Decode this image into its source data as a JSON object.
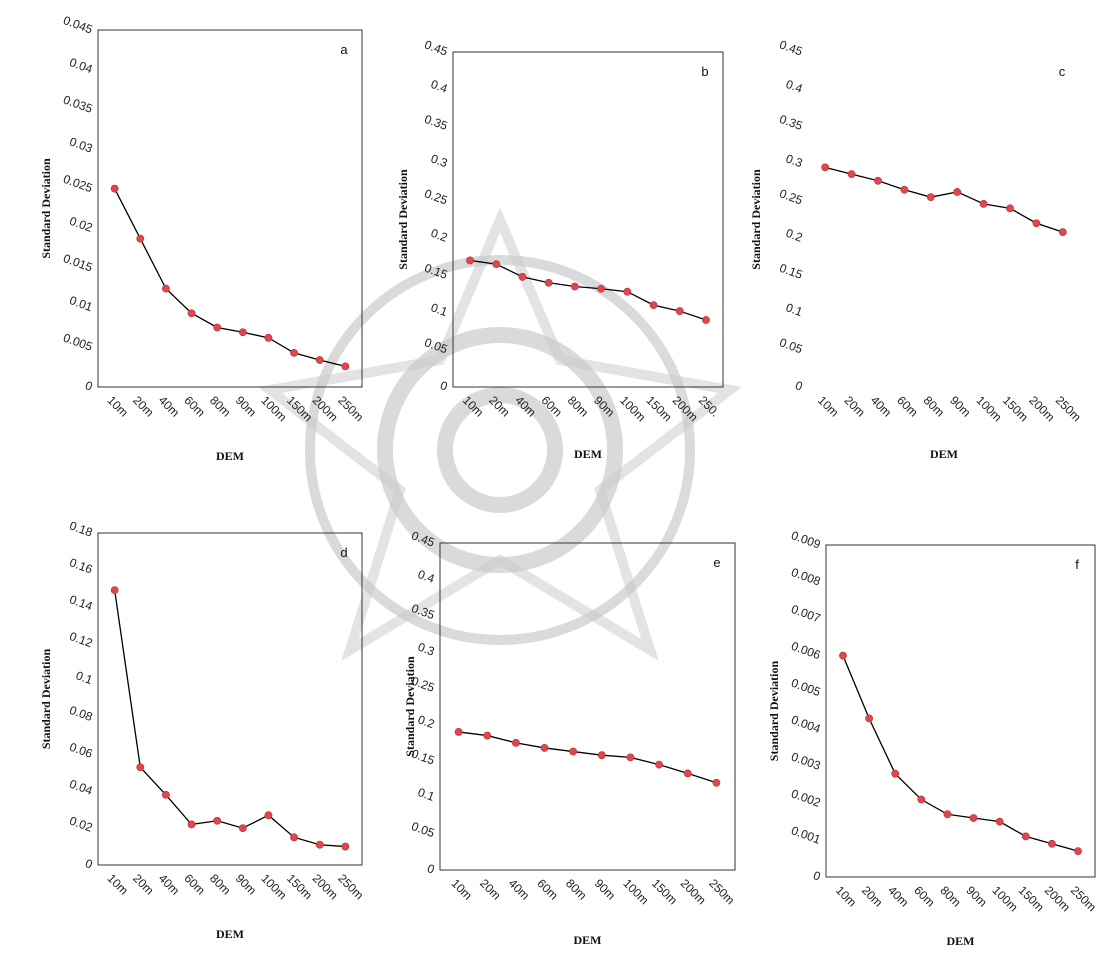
{
  "chart_data": [
    {
      "type": "line",
      "panel_label": "a",
      "xlabel": "DEM",
      "ylabel": "Standard Deviation",
      "categories": [
        "10m",
        "20m",
        "40m",
        "60m",
        "80m",
        "90m",
        "100m",
        "150m",
        "200m",
        "250m"
      ],
      "ylim": [
        0,
        0.045
      ],
      "yticks": [
        "0",
        "0.005",
        "0.01",
        "0.015",
        "0.02",
        "0.025",
        "0.03",
        "0.035",
        "0.04",
        "0.045"
      ],
      "values": [
        0.025,
        0.0187,
        0.0124,
        0.0093,
        0.0075,
        0.0069,
        0.0062,
        0.0043,
        0.0034,
        0.0026
      ],
      "line_color": "#000000",
      "marker_color": "#e0474c"
    },
    {
      "type": "line",
      "panel_label": "b",
      "xlabel": "DEM",
      "ylabel": "Standard Deviation",
      "categories": [
        "10m",
        "20m",
        "40m",
        "60m",
        "80m",
        "90m",
        "100m",
        "150m",
        "200m",
        "250m"
      ],
      "xticks_shown": [
        "10m",
        "20m",
        "40m",
        "60m",
        "80m",
        "90m",
        "100m",
        "150m",
        "200m",
        "250."
      ],
      "ylim": [
        0,
        0.45
      ],
      "yticks": [
        "0",
        "0.05",
        "0.1",
        "0.15",
        "0.2",
        "0.25",
        "0.3",
        "0.35",
        "0.4",
        "0.45"
      ],
      "values": [
        0.17,
        0.165,
        0.148,
        0.14,
        0.135,
        0.132,
        0.128,
        0.11,
        0.102,
        0.09
      ],
      "line_color": "#000000",
      "marker_color": "#e0474c"
    },
    {
      "type": "line",
      "panel_label": "c",
      "xlabel": "DEM",
      "ylabel": "Standard Deviation",
      "categories": [
        "10m",
        "20m",
        "40m",
        "60m",
        "80m",
        "90m",
        "100m",
        "150m",
        "200m",
        "250m"
      ],
      "ylim": [
        0,
        0.45
      ],
      "yticks": [
        "0",
        "0.05",
        "0.1",
        "0.15",
        "0.2",
        "0.25",
        "0.3",
        "0.35",
        "0.4",
        "0.45"
      ],
      "values": [
        0.295,
        0.286,
        0.277,
        0.265,
        0.255,
        0.262,
        0.246,
        0.24,
        0.22,
        0.208
      ],
      "line_color": "#000000",
      "marker_color": "#e0474c"
    },
    {
      "type": "line",
      "panel_label": "d",
      "xlabel": "DEM",
      "ylabel": "Standard Deviation",
      "categories": [
        "10m",
        "20m",
        "40m",
        "60m",
        "80m",
        "90m",
        "100m",
        "150m",
        "200m",
        "250m"
      ],
      "ylim": [
        0,
        0.18
      ],
      "yticks": [
        "0",
        "0.02",
        "0.04",
        "0.06",
        "0.08",
        "0.1",
        "0.12",
        "0.14",
        "0.16",
        "0.18"
      ],
      "values": [
        0.149,
        0.053,
        0.038,
        0.022,
        0.024,
        0.02,
        0.027,
        0.015,
        0.011,
        0.01
      ],
      "line_color": "#000000",
      "marker_color": "#e0474c"
    },
    {
      "type": "line",
      "panel_label": "e",
      "xlabel": "DEM",
      "ylabel": "Standard Deviation",
      "categories": [
        "10m",
        "20m",
        "40m",
        "60m",
        "80m",
        "90m",
        "100m",
        "150m",
        "200m",
        "250m"
      ],
      "ylim": [
        0,
        0.45
      ],
      "yticks": [
        "0",
        "0.05",
        "0.1",
        "0.15",
        "0.2",
        "0.25",
        "0.3",
        "0.35",
        "0.4",
        "0.45"
      ],
      "values": [
        0.19,
        0.185,
        0.175,
        0.168,
        0.163,
        0.158,
        0.155,
        0.145,
        0.133,
        0.12
      ],
      "line_color": "#000000",
      "marker_color": "#e0474c"
    },
    {
      "type": "line",
      "panel_label": "f",
      "xlabel": "DEM",
      "ylabel": "Standard Deviation",
      "categories": [
        "10m",
        "20m",
        "40m",
        "60m",
        "80m",
        "90m",
        "100m",
        "150m",
        "200m",
        "250m"
      ],
      "ylim": [
        0,
        0.009
      ],
      "yticks": [
        "0",
        "0.001",
        "0.002",
        "0.003",
        "0.004",
        "0.005",
        "0.006",
        "0.007",
        "0.008",
        "0.009"
      ],
      "values": [
        0.006,
        0.0043,
        0.0028,
        0.0021,
        0.0017,
        0.0016,
        0.0015,
        0.0011,
        0.0009,
        0.0007
      ],
      "line_color": "#000000",
      "marker_color": "#e0474c"
    }
  ]
}
